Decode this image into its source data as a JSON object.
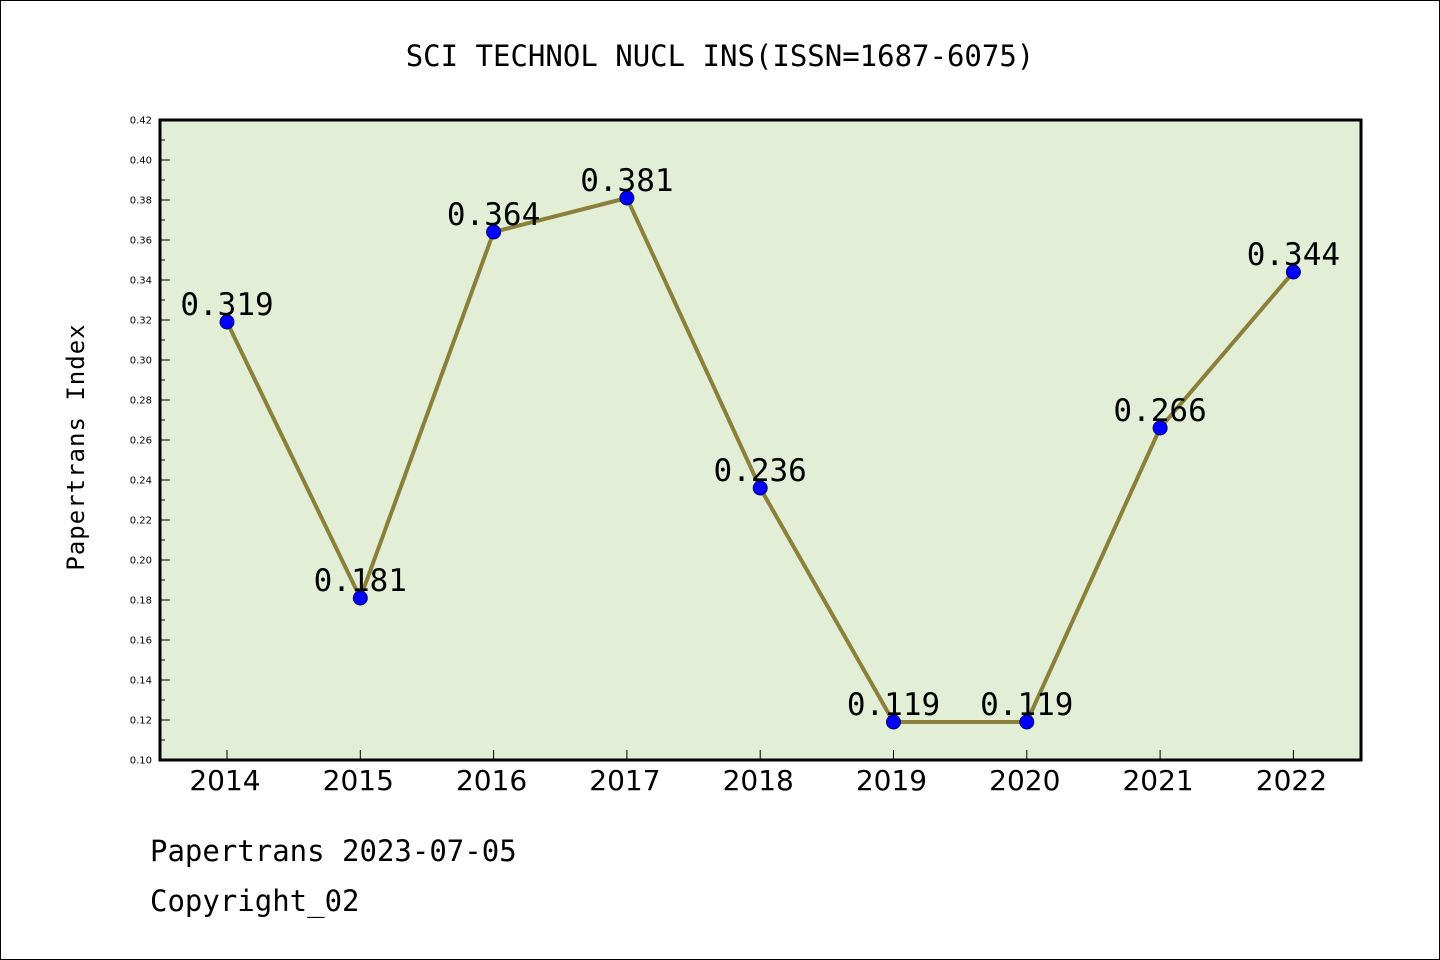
{
  "chart_data": {
    "type": "line",
    "title": "SCI TECHNOL NUCL INS(ISSN=1687-6075)",
    "xlabel": "",
    "ylabel": "Papertrans Index",
    "categories": [
      "2014",
      "2015",
      "2016",
      "2017",
      "2018",
      "2019",
      "2020",
      "2021",
      "2022"
    ],
    "series": [
      {
        "values": [
          0.319,
          0.181,
          0.364,
          0.381,
          0.236,
          0.119,
          0.119,
          0.266,
          0.344
        ]
      }
    ],
    "data_labels": [
      "0.319",
      "0.181",
      "0.364",
      "0.381",
      "0.236",
      "0.119",
      "0.119",
      "0.266",
      "0.344"
    ],
    "ylim": [
      0.1,
      0.42
    ],
    "yticks": [
      "0.10",
      "0.12",
      "0.14",
      "0.16",
      "0.18",
      "0.20",
      "0.22",
      "0.24",
      "0.26",
      "0.28",
      "0.30",
      "0.32",
      "0.34",
      "0.36",
      "0.38",
      "0.40",
      "0.42"
    ],
    "grid": false,
    "legend": "none",
    "colors": {
      "plot_background": "#e2efd6",
      "line": "#8b803a",
      "marker": "#0000ff",
      "axis": "#000000"
    }
  },
  "footer": {
    "date_line": "Papertrans 2023-07-05",
    "copyright_line": "Copyright_02"
  }
}
